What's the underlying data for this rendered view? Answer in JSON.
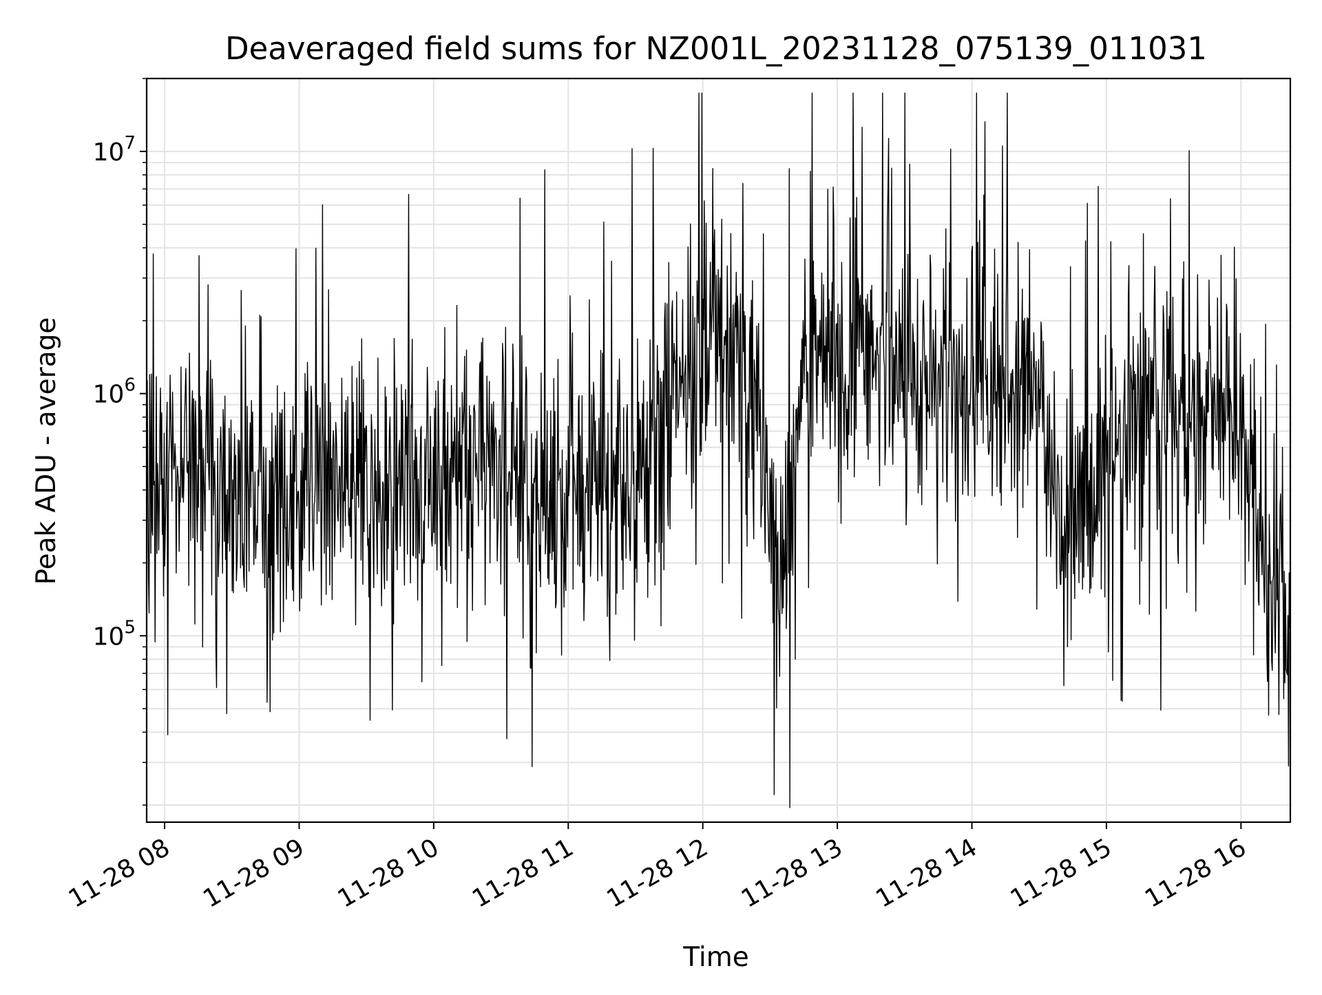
{
  "chart_data": {
    "type": "line",
    "title": "Deaveraged field sums for NZ001L_20231128_075139_011031",
    "xlabel": "Time",
    "ylabel": "Peak ADU - average",
    "y_scale": "log",
    "ylim": [
      17000,
      20000000
    ],
    "xlim": [
      "2023-11-28 07:52",
      "2023-11-28 16:22"
    ],
    "grid": true,
    "x_tick_labels": [
      "11-28 08",
      "11-28 09",
      "11-28 10",
      "11-28 11",
      "11-28 12",
      "11-28 13",
      "11-28 14",
      "11-28 15",
      "11-28 16"
    ],
    "y_tick_labels": [
      {
        "base": "10",
        "exp": "5"
      },
      {
        "base": "10",
        "exp": "6"
      },
      {
        "base": "10",
        "exp": "7"
      }
    ],
    "series": [
      {
        "color": "#000000",
        "x": [
          "2023-11-28 07:52",
          "2023-11-28 08:00",
          "2023-11-28 08:09",
          "2023-11-28 08:30",
          "2023-11-28 09:00",
          "2023-11-28 09:30",
          "2023-11-28 10:00",
          "2023-11-28 10:14",
          "2023-11-28 10:30",
          "2023-11-28 11:00",
          "2023-11-28 11:30",
          "2023-11-28 11:50",
          "2023-11-28 12:00",
          "2023-11-28 12:10",
          "2023-11-28 12:22",
          "2023-11-28 12:32",
          "2023-11-28 12:38",
          "2023-11-28 12:45",
          "2023-11-28 13:00",
          "2023-11-28 13:30",
          "2023-11-28 14:00",
          "2023-11-28 14:30",
          "2023-11-28 14:40",
          "2023-11-28 14:55",
          "2023-11-28 15:15",
          "2023-11-28 15:30",
          "2023-11-28 15:50",
          "2023-11-28 16:05",
          "2023-11-28 16:12",
          "2023-11-28 16:22"
        ],
        "y": [
          500000,
          420000,
          480000,
          450000,
          400000,
          380000,
          420000,
          450000,
          430000,
          390000,
          380000,
          900000,
          1700000,
          1600000,
          800000,
          170000,
          280000,
          1400000,
          1300000,
          1200000,
          1100000,
          1000000,
          280000,
          350000,
          1000000,
          750000,
          700000,
          500000,
          150000,
          130000
        ]
      }
    ]
  }
}
